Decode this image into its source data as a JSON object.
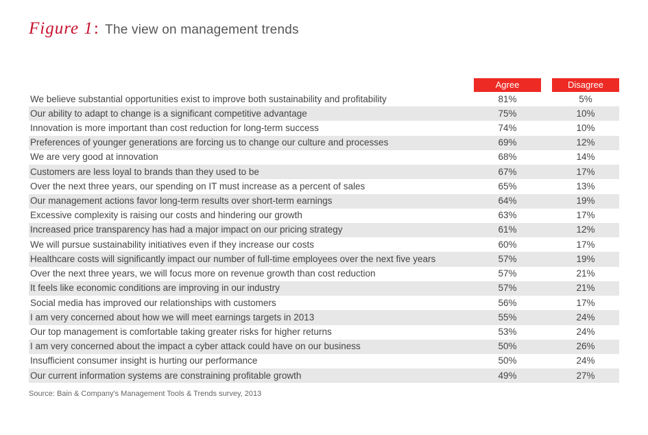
{
  "figure": {
    "label": "Figure 1",
    "title": "The view on management trends"
  },
  "table": {
    "columns": {
      "agree": "Agree",
      "disagree": "Disagree"
    },
    "header_bg": "#ee2a24",
    "header_fg": "#ffffff",
    "row_alt_bg": "#e8e7e7",
    "rows": [
      {
        "statement": "We believe substantial opportunities exist to improve both sustainability and profitability",
        "agree": "81%",
        "disagree": "5%"
      },
      {
        "statement": "Our ability to adapt to change is a significant competitive advantage",
        "agree": "75%",
        "disagree": "10%"
      },
      {
        "statement": "Innovation is more important than cost reduction for long-term success",
        "agree": "74%",
        "disagree": "10%"
      },
      {
        "statement": "Preferences of younger generations are forcing us to change our culture and processes",
        "agree": "69%",
        "disagree": "12%"
      },
      {
        "statement": "We are very good at innovation",
        "agree": "68%",
        "disagree": "14%"
      },
      {
        "statement": "Customers are less loyal to brands than they used to be",
        "agree": "67%",
        "disagree": "17%"
      },
      {
        "statement": "Over the next three years, our spending on IT must increase as a percent of sales",
        "agree": "65%",
        "disagree": "13%"
      },
      {
        "statement": "Our management actions favor long-term results over short-term earnings",
        "agree": "64%",
        "disagree": "19%"
      },
      {
        "statement": "Excessive complexity is raising our costs and hindering our growth",
        "agree": "63%",
        "disagree": "17%"
      },
      {
        "statement": "Increased price transparency has had a major impact on our pricing strategy",
        "agree": "61%",
        "disagree": "12%"
      },
      {
        "statement": "We will pursue sustainability initiatives even if they increase our costs",
        "agree": "60%",
        "disagree": "17%"
      },
      {
        "statement": "Healthcare costs will significantly impact our number of full-time employees over the next five years",
        "agree": "57%",
        "disagree": "19%"
      },
      {
        "statement": "Over the next three years, we will focus more on revenue growth than cost reduction",
        "agree": "57%",
        "disagree": "21%"
      },
      {
        "statement": "It feels like economic conditions are improving in our industry",
        "agree": "57%",
        "disagree": "21%"
      },
      {
        "statement": "Social media has improved our relationships with customers",
        "agree": "56%",
        "disagree": "17%"
      },
      {
        "statement": "I am very concerned about how we will meet earnings targets in 2013",
        "agree": "55%",
        "disagree": "24%"
      },
      {
        "statement": "Our top management is comfortable taking greater risks for higher returns",
        "agree": "53%",
        "disagree": "24%"
      },
      {
        "statement": "I am very concerned about the impact a cyber attack could have on our business",
        "agree": "50%",
        "disagree": "26%"
      },
      {
        "statement": "Insufficient consumer insight is hurting our performance",
        "agree": "50%",
        "disagree": "24%"
      },
      {
        "statement": "Our current information systems are constraining profitable growth",
        "agree": "49%",
        "disagree": "27%"
      }
    ]
  },
  "source": "Source: Bain & Company's Management Tools & Trends survey, 2013"
}
